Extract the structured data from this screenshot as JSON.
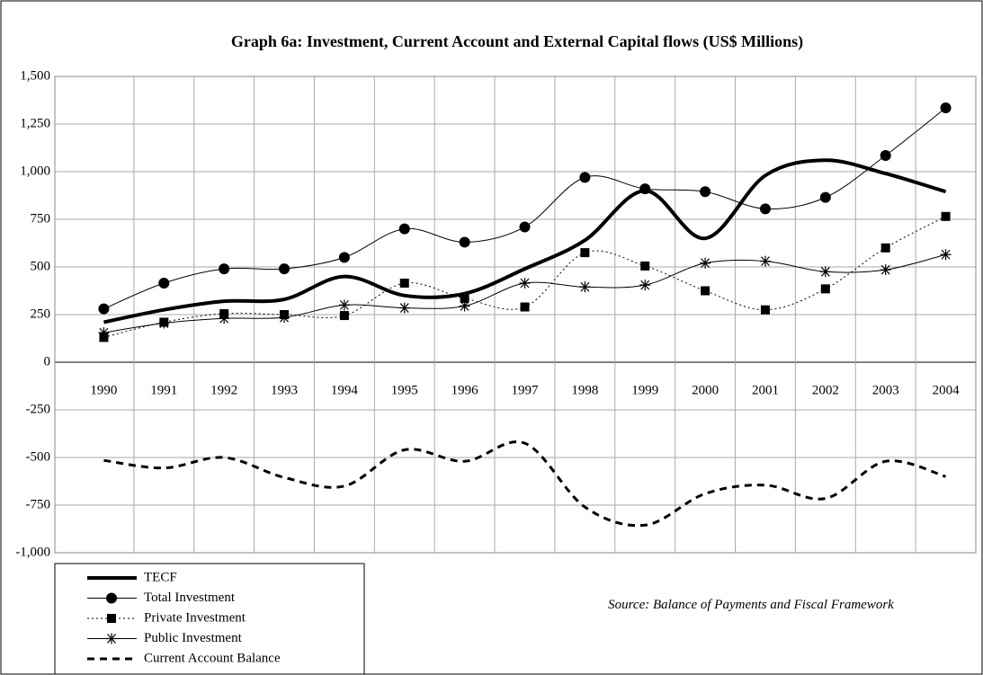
{
  "chart_data": {
    "type": "line",
    "title": "Graph 6a: Investment, Current Account and External Capital flows (US$ Millions)",
    "categories": [
      "1990",
      "1991",
      "1992",
      "1993",
      "1994",
      "1995",
      "1996",
      "1997",
      "1998",
      "1999",
      "2000",
      "2001",
      "2002",
      "2003",
      "2004"
    ],
    "series": [
      {
        "name": "TECF",
        "color": "#000000",
        "line_width": 4,
        "dash": "none",
        "marker": "none",
        "values": [
          210,
          275,
          320,
          330,
          450,
          350,
          360,
          490,
          640,
          900,
          650,
          980,
          1060,
          990,
          895
        ]
      },
      {
        "name": "Total Investment",
        "color": "#000000",
        "line_width": 1,
        "dash": "none",
        "marker": "circle",
        "values": [
          280,
          415,
          490,
          490,
          550,
          700,
          630,
          710,
          970,
          910,
          895,
          805,
          865,
          1085,
          1335
        ]
      },
      {
        "name": "Private Investment",
        "color": "#000000",
        "line_width": 1,
        "dash": "2 3",
        "marker": "square",
        "values": [
          130,
          210,
          255,
          250,
          245,
          415,
          335,
          290,
          575,
          505,
          375,
          275,
          385,
          600,
          765
        ]
      },
      {
        "name": "Public Investment",
        "color": "#000000",
        "line_width": 1,
        "dash": "none",
        "marker": "asterisk",
        "values": [
          155,
          205,
          230,
          235,
          300,
          285,
          295,
          415,
          395,
          405,
          520,
          530,
          475,
          485,
          565
        ]
      },
      {
        "name": "Current Account Balance",
        "color": "#000000",
        "line_width": 3,
        "dash": "8 6",
        "marker": "none",
        "values": [
          -515,
          -555,
          -500,
          -605,
          -650,
          -460,
          -520,
          -425,
          -760,
          -855,
          -690,
          -645,
          -715,
          -520,
          -600
        ]
      }
    ],
    "ylim": [
      -1000,
      1500
    ],
    "yticks": [
      {
        "value": -1000,
        "label": "-1,000"
      },
      -750,
      -500,
      -250,
      0,
      250,
      500,
      750,
      {
        "value": 1000,
        "label": "1,000"
      },
      {
        "value": 1250,
        "label": "1,250"
      },
      {
        "value": 1500,
        "label": "1,500"
      }
    ],
    "grid": true,
    "smooth": true,
    "legend": "bottom-left",
    "source": "Source: Balance of Payments and Fiscal Framework"
  }
}
